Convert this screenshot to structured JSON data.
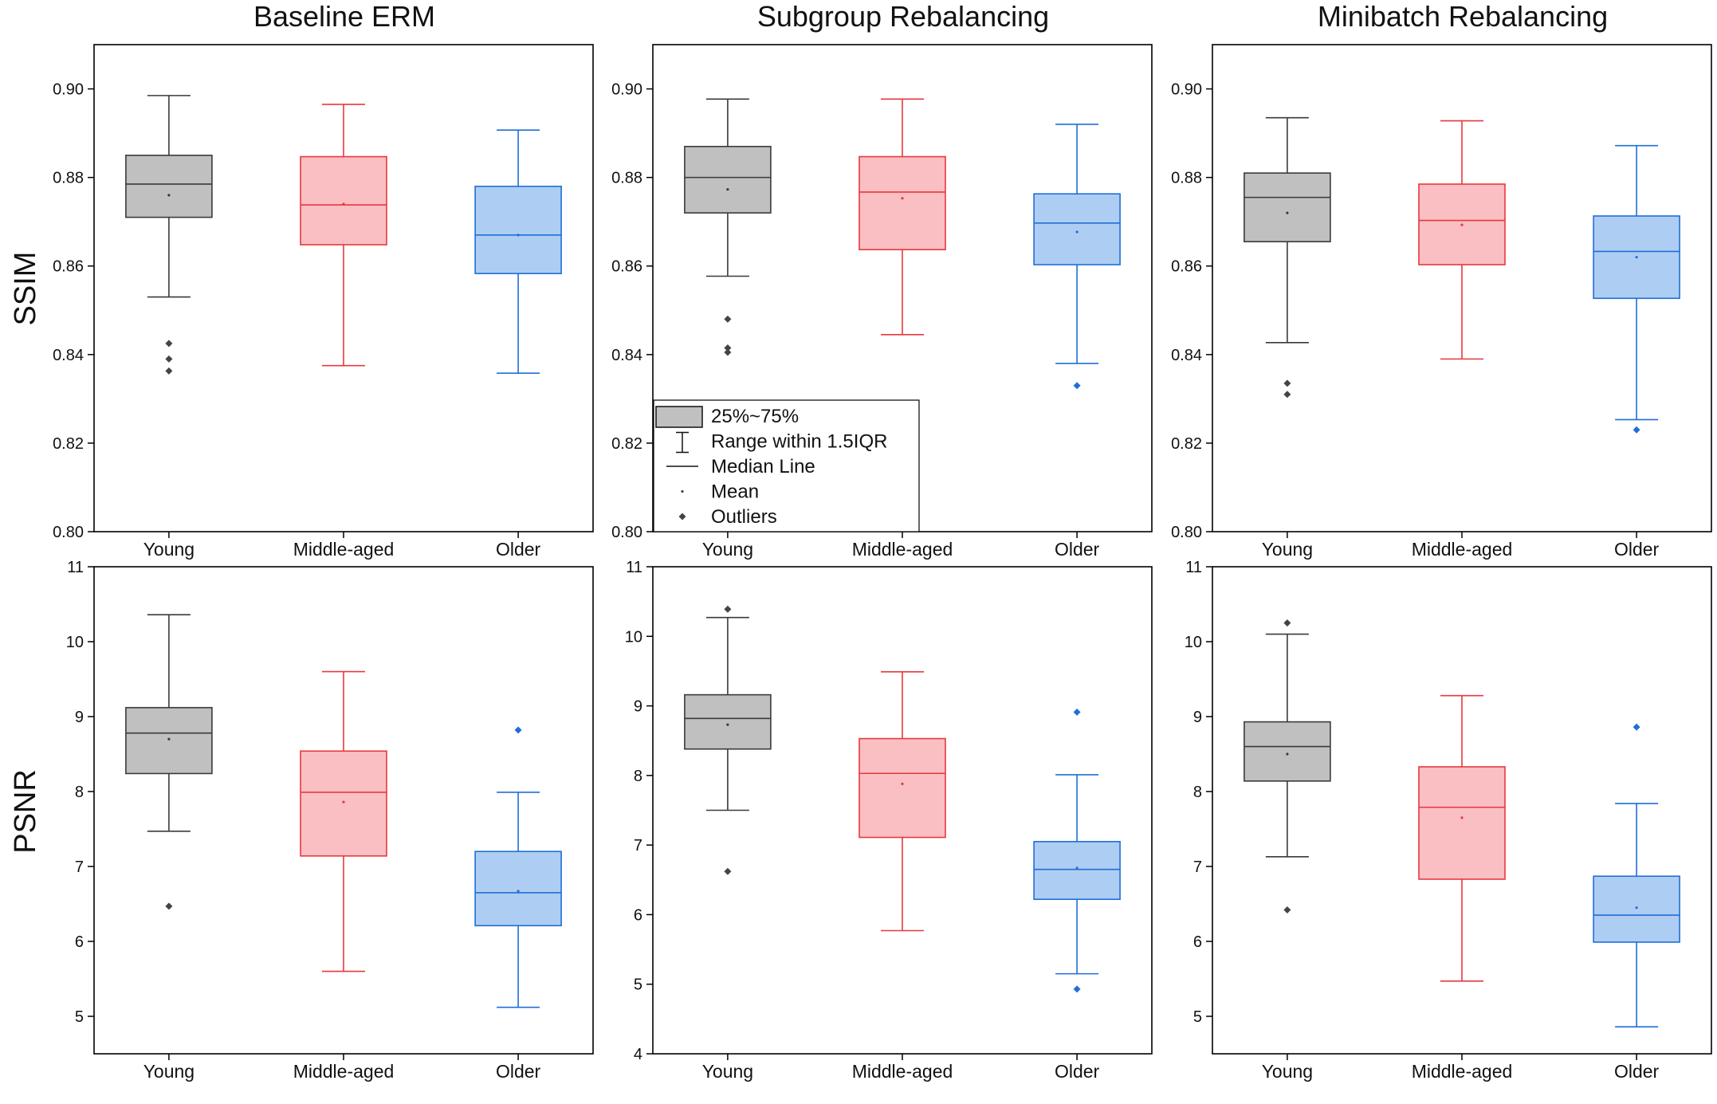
{
  "column_titles": [
    "Baseline ERM",
    "Subgroup Rebalancing",
    "Minibatch Rebalancing"
  ],
  "row_labels": [
    "SSIM",
    "PSNR"
  ],
  "colors": {
    "Young": {
      "fill": "#c0c0c0",
      "stroke": "#3a3a3a",
      "outlier": "#444444"
    },
    "Middle-aged": {
      "fill": "#f9bfc2",
      "stroke": "#e8383f",
      "outlier": "#e8383f"
    },
    "Older": {
      "fill": "#aecdf3",
      "stroke": "#1f6fd6",
      "outlier": "#1f6fd6"
    }
  },
  "legend": {
    "items": [
      {
        "label": "25%~75%",
        "symbol": "box"
      },
      {
        "label": "Range within 1.5IQR",
        "symbol": "whisker"
      },
      {
        "label": "Median Line",
        "symbol": "line"
      },
      {
        "label": "Mean",
        "symbol": "dot"
      },
      {
        "label": "Outliers",
        "symbol": "diamond"
      }
    ]
  },
  "chart_data": [
    {
      "type": "box",
      "title": "Baseline ERM",
      "ylabel": "SSIM",
      "categories": [
        "Young",
        "Middle-aged",
        "Older"
      ],
      "ylim": [
        0.8,
        0.91
      ],
      "yticks": [
        "0.80",
        "0.82",
        "0.84",
        "0.86",
        "0.88",
        "0.90"
      ],
      "boxes": [
        {
          "category": "Young",
          "whisker_low": 0.853,
          "q1": 0.871,
          "median": 0.8785,
          "mean": 0.876,
          "q3": 0.885,
          "whisker_high": 0.8985,
          "outliers": [
            0.8425,
            0.839,
            0.8363
          ]
        },
        {
          "category": "Middle-aged",
          "whisker_low": 0.8375,
          "q1": 0.8648,
          "median": 0.8738,
          "mean": 0.874,
          "q3": 0.8847,
          "whisker_high": 0.8965,
          "outliers": []
        },
        {
          "category": "Older",
          "whisker_low": 0.8358,
          "q1": 0.8583,
          "median": 0.867,
          "mean": 0.867,
          "q3": 0.878,
          "whisker_high": 0.8907,
          "outliers": []
        }
      ]
    },
    {
      "type": "box",
      "title": "Subgroup Rebalancing",
      "ylabel": "SSIM",
      "categories": [
        "Young",
        "Middle-aged",
        "Older"
      ],
      "ylim": [
        0.8,
        0.91
      ],
      "yticks": [
        "0.80",
        "0.82",
        "0.84",
        "0.86",
        "0.88",
        "0.90"
      ],
      "boxes": [
        {
          "category": "Young",
          "whisker_low": 0.8577,
          "q1": 0.872,
          "median": 0.88,
          "mean": 0.8773,
          "q3": 0.887,
          "whisker_high": 0.8977,
          "outliers": [
            0.848,
            0.8415,
            0.8405
          ]
        },
        {
          "category": "Middle-aged",
          "whisker_low": 0.8445,
          "q1": 0.8637,
          "median": 0.8767,
          "mean": 0.8753,
          "q3": 0.8847,
          "whisker_high": 0.8977,
          "outliers": []
        },
        {
          "category": "Older",
          "whisker_low": 0.838,
          "q1": 0.8603,
          "median": 0.8697,
          "mean": 0.8677,
          "q3": 0.8763,
          "whisker_high": 0.892,
          "outliers": [
            0.833
          ]
        }
      ]
    },
    {
      "type": "box",
      "title": "Minibatch Rebalancing",
      "ylabel": "SSIM",
      "categories": [
        "Young",
        "Middle-aged",
        "Older"
      ],
      "ylim": [
        0.8,
        0.91
      ],
      "yticks": [
        "0.80",
        "0.82",
        "0.84",
        "0.86",
        "0.88",
        "0.90"
      ],
      "boxes": [
        {
          "category": "Young",
          "whisker_low": 0.8427,
          "q1": 0.8655,
          "median": 0.8755,
          "mean": 0.872,
          "q3": 0.881,
          "whisker_high": 0.8935,
          "outliers": [
            0.8335,
            0.831
          ]
        },
        {
          "category": "Middle-aged",
          "whisker_low": 0.839,
          "q1": 0.8603,
          "median": 0.8703,
          "mean": 0.8693,
          "q3": 0.8785,
          "whisker_high": 0.8928,
          "outliers": []
        },
        {
          "category": "Older",
          "whisker_low": 0.8253,
          "q1": 0.8527,
          "median": 0.8633,
          "mean": 0.862,
          "q3": 0.8713,
          "whisker_high": 0.8872,
          "outliers": [
            0.823
          ]
        }
      ]
    },
    {
      "type": "box",
      "title": "",
      "ylabel": "PSNR",
      "categories": [
        "Young",
        "Middle-aged",
        "Older"
      ],
      "ylim": [
        4.5,
        11
      ],
      "yticks": [
        "5",
        "6",
        "7",
        "8",
        "9",
        "10",
        "11"
      ],
      "boxes": [
        {
          "category": "Young",
          "whisker_low": 7.47,
          "q1": 8.24,
          "median": 8.78,
          "mean": 8.7,
          "q3": 9.12,
          "whisker_high": 10.36,
          "outliers": [
            6.47
          ]
        },
        {
          "category": "Middle-aged",
          "whisker_low": 5.6,
          "q1": 7.14,
          "median": 7.99,
          "mean": 7.86,
          "q3": 8.54,
          "whisker_high": 9.6,
          "outliers": []
        },
        {
          "category": "Older",
          "whisker_low": 5.12,
          "q1": 6.21,
          "median": 6.65,
          "mean": 6.67,
          "q3": 7.2,
          "whisker_high": 7.99,
          "outliers": [
            8.82
          ]
        }
      ]
    },
    {
      "type": "box",
      "title": "",
      "ylabel": "PSNR",
      "categories": [
        "Young",
        "Middle-aged",
        "Older"
      ],
      "ylim": [
        4,
        11
      ],
      "yticks": [
        "4",
        "5",
        "6",
        "7",
        "8",
        "9",
        "10",
        "11"
      ],
      "boxes": [
        {
          "category": "Young",
          "whisker_low": 7.5,
          "q1": 8.38,
          "median": 8.82,
          "mean": 8.73,
          "q3": 9.16,
          "whisker_high": 10.27,
          "outliers": [
            10.39,
            6.62
          ]
        },
        {
          "category": "Middle-aged",
          "whisker_low": 5.77,
          "q1": 7.11,
          "median": 8.03,
          "mean": 7.88,
          "q3": 8.53,
          "whisker_high": 9.49,
          "outliers": []
        },
        {
          "category": "Older",
          "whisker_low": 5.15,
          "q1": 6.22,
          "median": 6.65,
          "mean": 6.67,
          "q3": 7.05,
          "whisker_high": 8.01,
          "outliers": [
            8.91,
            4.93
          ]
        }
      ]
    },
    {
      "type": "box",
      "title": "",
      "ylabel": "PSNR",
      "categories": [
        "Young",
        "Middle-aged",
        "Older"
      ],
      "ylim": [
        4.5,
        11
      ],
      "yticks": [
        "5",
        "6",
        "7",
        "8",
        "9",
        "10",
        "11"
      ],
      "boxes": [
        {
          "category": "Young",
          "whisker_low": 7.13,
          "q1": 8.14,
          "median": 8.6,
          "mean": 8.5,
          "q3": 8.93,
          "whisker_high": 10.1,
          "outliers": [
            10.25,
            6.42
          ]
        },
        {
          "category": "Middle-aged",
          "whisker_low": 5.47,
          "q1": 6.83,
          "median": 7.79,
          "mean": 7.65,
          "q3": 8.33,
          "whisker_high": 9.28,
          "outliers": []
        },
        {
          "category": "Older",
          "whisker_low": 4.86,
          "q1": 5.99,
          "median": 6.35,
          "mean": 6.45,
          "q3": 6.87,
          "whisker_high": 7.84,
          "outliers": [
            8.86
          ]
        }
      ]
    }
  ]
}
